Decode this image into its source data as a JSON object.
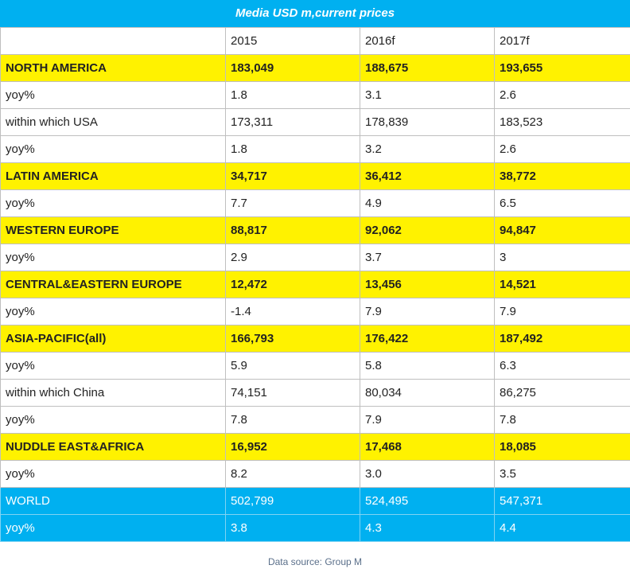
{
  "chart_data": {
    "type": "table",
    "title": "Media USD m,current prices",
    "columns": [
      "",
      "2015",
      "2016f",
      "2017f"
    ],
    "rows": [
      {
        "label": "NORTH AMERICA",
        "values": [
          "183,049",
          "188,675",
          "193,655"
        ],
        "style": "region"
      },
      {
        "label": "yoy%",
        "values": [
          "1.8",
          "3.1",
          "2.6"
        ],
        "style": "plain"
      },
      {
        "label": "within which USA",
        "values": [
          "173,311",
          "178,839",
          "183,523"
        ],
        "style": "plain"
      },
      {
        "label": "yoy%",
        "values": [
          "1.8",
          "3.2",
          "2.6"
        ],
        "style": "plain"
      },
      {
        "label": "LATIN AMERICA",
        "values": [
          "34,717",
          "36,412",
          "38,772"
        ],
        "style": "region"
      },
      {
        "label": "yoy%",
        "values": [
          "7.7",
          "4.9",
          "6.5"
        ],
        "style": "plain"
      },
      {
        "label": "WESTERN EUROPE",
        "values": [
          "88,817",
          "92,062",
          "94,847"
        ],
        "style": "region"
      },
      {
        "label": "yoy%",
        "values": [
          "2.9",
          "3.7",
          "3"
        ],
        "style": "plain"
      },
      {
        "label": "CENTRAL&EASTERN EUROPE",
        "values": [
          "12,472",
          "13,456",
          "14,521"
        ],
        "style": "region"
      },
      {
        "label": "yoy%",
        "values": [
          "-1.4",
          "7.9",
          "7.9"
        ],
        "style": "plain"
      },
      {
        "label": "ASIA-PACIFIC(all)",
        "values": [
          "166,793",
          "176,422",
          "187,492"
        ],
        "style": "region"
      },
      {
        "label": "yoy%",
        "values": [
          "5.9",
          "5.8",
          "6.3"
        ],
        "style": "plain"
      },
      {
        "label": "within which China",
        "values": [
          "74,151",
          "80,034",
          "86,275"
        ],
        "style": "plain"
      },
      {
        "label": "yoy%",
        "values": [
          "7.8",
          "7.9",
          "7.8"
        ],
        "style": "plain"
      },
      {
        "label": "NUDDLE EAST&AFRICA",
        "values": [
          "16,952",
          "17,468",
          "18,085"
        ],
        "style": "region"
      },
      {
        "label": "yoy%",
        "values": [
          "8.2",
          "3.0",
          "3.5"
        ],
        "style": "plain"
      },
      {
        "label": "WORLD",
        "values": [
          "502,799",
          "524,495",
          "547,371"
        ],
        "style": "world"
      },
      {
        "label": "yoy%",
        "values": [
          "3.8",
          "4.3",
          "4.4"
        ],
        "style": "world"
      }
    ],
    "source": "Data source: Group M"
  },
  "colors": {
    "title_bg": "#00b0f0",
    "region_bg": "#fff200",
    "world_bg": "#00b0f0",
    "grid": "#bfbfbf"
  }
}
